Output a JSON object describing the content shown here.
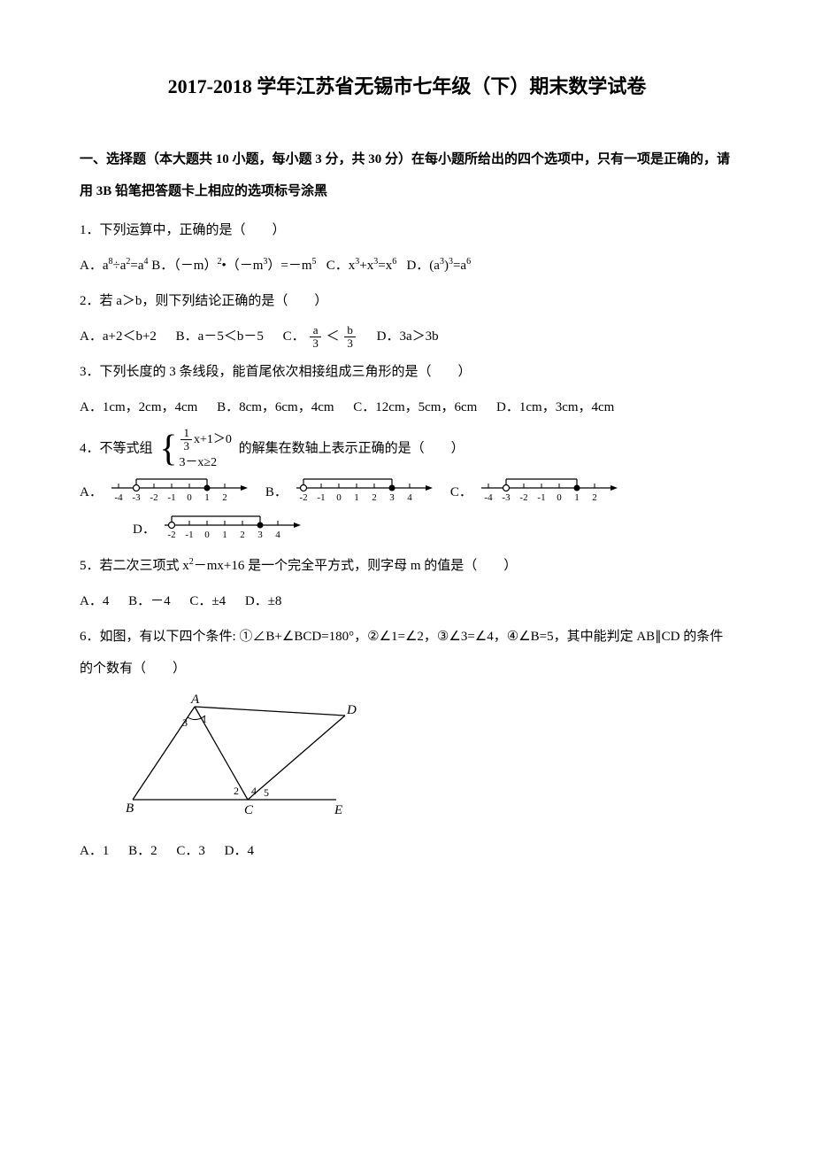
{
  "title": "2017-2018 学年江苏省无锡市七年级（下）期末数学试卷",
  "section1": {
    "header": "一、选择题（本大题共 10 小题，每小题 3 分，共 30 分）在每小题所给出的四个选项中，只有一项是正确的，请用 3B 铅笔把答题卡上相应的选项标号涂黑"
  },
  "q1": {
    "text": "1．下列运算中，正确的是（　　）",
    "optA_pre": "A．a",
    "optA_mid": "÷a",
    "optA_mid2": "=a",
    "optB_pre": " B．（－m）",
    "optB_mid": "•（－m",
    "optB_mid2": "）=－m",
    "optC_pre": "C．x",
    "optC_mid": "+x",
    "optC_mid2": "=x",
    "optD_pre": "D．(a",
    "optD_mid": ")",
    "optD_mid2": "=a"
  },
  "q2": {
    "text": "2．若 a＞b，则下列结论正确的是（　　）",
    "optA": "A．a+2＜b+2",
    "optB": "B．a－5＜b－5",
    "optC_pre": "C．",
    "optC_mid": "＜",
    "optD": "D．3a＞3b"
  },
  "q3": {
    "text": "3．下列长度的 3 条线段，能首尾依次相接组成三角形的是（　　）",
    "optA": "A．1cm，2cm，4cm",
    "optB": "B．8cm，6cm，4cm",
    "optC": "C．12cm，5cm，6cm",
    "optD": "D．1cm，3cm，4cm"
  },
  "q4": {
    "text_pre": "4．不等式组",
    "line1_pre": "x+1＞0",
    "line2": "3－x≥2",
    "text_post": "的解集在数轴上表示正确的是（　　）",
    "labelA": "A．",
    "labelB": "B．",
    "labelC": "C．",
    "labelD": "D．",
    "nlA": {
      "ticks": [
        -4,
        -3,
        -2,
        -1,
        0,
        1,
        2
      ],
      "open": -3,
      "closed": 1
    },
    "nlB": {
      "ticks": [
        -2,
        -1,
        0,
        1,
        2,
        3,
        4
      ],
      "open": -2,
      "closed": 3
    },
    "nlC": {
      "ticks": [
        -4,
        -3,
        -2,
        -1,
        0,
        1,
        2
      ],
      "open": -3,
      "closed": 1
    },
    "nlD": {
      "ticks": [
        -2,
        -1,
        0,
        1,
        2,
        3,
        4
      ],
      "open": -2,
      "closed": 3
    }
  },
  "q5": {
    "text_pre": "5．若二次三项式 x",
    "text_mid": "－mx+16 是一个完全平方式，则字母 m 的值是（　　）",
    "optA": "A．4",
    "optB": "B．－4",
    "optC": "C．±4",
    "optD": "D．±8"
  },
  "q6": {
    "text": "6．如图，有以下四个条件: ①∠B+∠BCD=180°，②∠1=∠2，③∠3=∠4，④∠B=5，其中能判定 AB∥CD 的条件的个数有（　　）",
    "optA": "A．1",
    "optB": "B．2",
    "optC": "C．3",
    "optD": "D．4",
    "figure": {
      "points": {
        "B": [
          10,
          120
        ],
        "E": [
          240,
          120
        ],
        "C": [
          140,
          120
        ],
        "A": [
          80,
          15
        ],
        "D": [
          250,
          25
        ]
      },
      "labels": {
        "A": "A",
        "B": "B",
        "C": "C",
        "D": "D",
        "E": "E",
        "1": "1",
        "2": "2",
        "3": "3",
        "4": "4",
        "5": "5"
      }
    }
  },
  "colors": {
    "text": "#000000",
    "bg": "#ffffff",
    "line": "#000000"
  }
}
